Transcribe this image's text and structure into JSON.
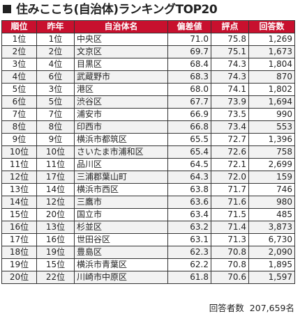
{
  "title": "住みここち(自治体)ランキングTOP20",
  "headers": [
    "順位",
    "昨年",
    "自治体名",
    "偏差値",
    "評点",
    "回答数"
  ],
  "rows": [
    {
      "rank": "1位",
      "prev": "1位",
      "name": "中央区",
      "dev": "71.0",
      "score": "75.8",
      "count": "1,269"
    },
    {
      "rank": "2位",
      "prev": "2位",
      "name": "文京区",
      "dev": "69.7",
      "score": "75.1",
      "count": "1,673"
    },
    {
      "rank": "3位",
      "prev": "4位",
      "name": "目黒区",
      "dev": "68.4",
      "score": "74.3",
      "count": "1,804"
    },
    {
      "rank": "4位",
      "prev": "6位",
      "name": "武蔵野市",
      "dev": "68.3",
      "score": "74.3",
      "count": "870"
    },
    {
      "rank": "5位",
      "prev": "3位",
      "name": "港区",
      "dev": "68.0",
      "score": "74.1",
      "count": "1,802"
    },
    {
      "rank": "6位",
      "prev": "5位",
      "name": "渋谷区",
      "dev": "67.7",
      "score": "73.9",
      "count": "1,694"
    },
    {
      "rank": "7位",
      "prev": "7位",
      "name": "浦安市",
      "dev": "66.9",
      "score": "73.5",
      "count": "990"
    },
    {
      "rank": "8位",
      "prev": "8位",
      "name": "印西市",
      "dev": "66.8",
      "score": "73.4",
      "count": "553"
    },
    {
      "rank": "9位",
      "prev": "9位",
      "name": "横浜市都筑区",
      "dev": "65.5",
      "score": "72.7",
      "count": "1,396"
    },
    {
      "rank": "10位",
      "prev": "10位",
      "name": "さいたま市浦和区",
      "dev": "65.4",
      "score": "72.6",
      "count": "758"
    },
    {
      "rank": "11位",
      "prev": "11位",
      "name": "品川区",
      "dev": "64.5",
      "score": "72.1",
      "count": "2,699"
    },
    {
      "rank": "12位",
      "prev": "17位",
      "name": "三浦郡葉山町",
      "dev": "64.3",
      "score": "72.0",
      "count": "159"
    },
    {
      "rank": "13位",
      "prev": "14位",
      "name": "横浜市西区",
      "dev": "63.8",
      "score": "71.7",
      "count": "746"
    },
    {
      "rank": "14位",
      "prev": "12位",
      "name": "三鷹市",
      "dev": "63.6",
      "score": "71.6",
      "count": "980"
    },
    {
      "rank": "15位",
      "prev": "20位",
      "name": "国立市",
      "dev": "63.4",
      "score": "71.5",
      "count": "485"
    },
    {
      "rank": "16位",
      "prev": "13位",
      "name": "杉並区",
      "dev": "63.2",
      "score": "71.4",
      "count": "3,873"
    },
    {
      "rank": "17位",
      "prev": "16位",
      "name": "世田谷区",
      "dev": "63.1",
      "score": "71.3",
      "count": "6,730"
    },
    {
      "rank": "18位",
      "prev": "19位",
      "name": "豊島区",
      "dev": "62.3",
      "score": "70.8",
      "count": "2,090"
    },
    {
      "rank": "19位",
      "prev": "15位",
      "name": "横浜市青葉区",
      "dev": "62.2",
      "score": "70.8",
      "count": "1,895"
    },
    {
      "rank": "20位",
      "prev": "22位",
      "name": "川崎市中原区",
      "dev": "61.8",
      "score": "70.6",
      "count": "1,597"
    }
  ],
  "footer": {
    "label": "回答者数",
    "value": "207,659名"
  },
  "colors": {
    "header_bg": "#c8102e",
    "header_text": "#ffffff",
    "alt_row": "#f2f2f2"
  }
}
